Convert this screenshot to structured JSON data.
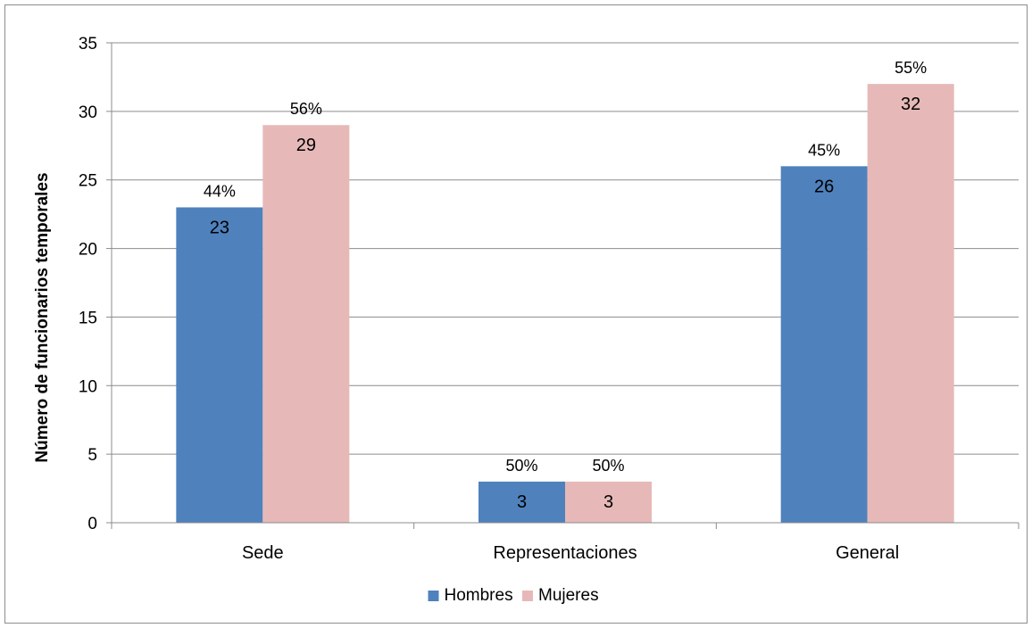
{
  "chart_data": {
    "type": "bar",
    "title": "",
    "xlabel": "",
    "ylabel": "Número de funcionarios temporales",
    "ylim": [
      0,
      35
    ],
    "yticks": [
      0,
      5,
      10,
      15,
      20,
      25,
      30,
      35
    ],
    "categories": [
      "Sede",
      "Representaciones",
      "General"
    ],
    "series": [
      {
        "name": "Hombres",
        "values": [
          23,
          3,
          26
        ],
        "percent_labels": [
          "44%",
          "50%",
          "45%"
        ],
        "color": "#4f81bd"
      },
      {
        "name": "Mujeres",
        "values": [
          29,
          3,
          32
        ],
        "percent_labels": [
          "56%",
          "50%",
          "55%"
        ],
        "color": "#e6b9b8"
      }
    ],
    "grid": true,
    "legend_position": "bottom"
  }
}
